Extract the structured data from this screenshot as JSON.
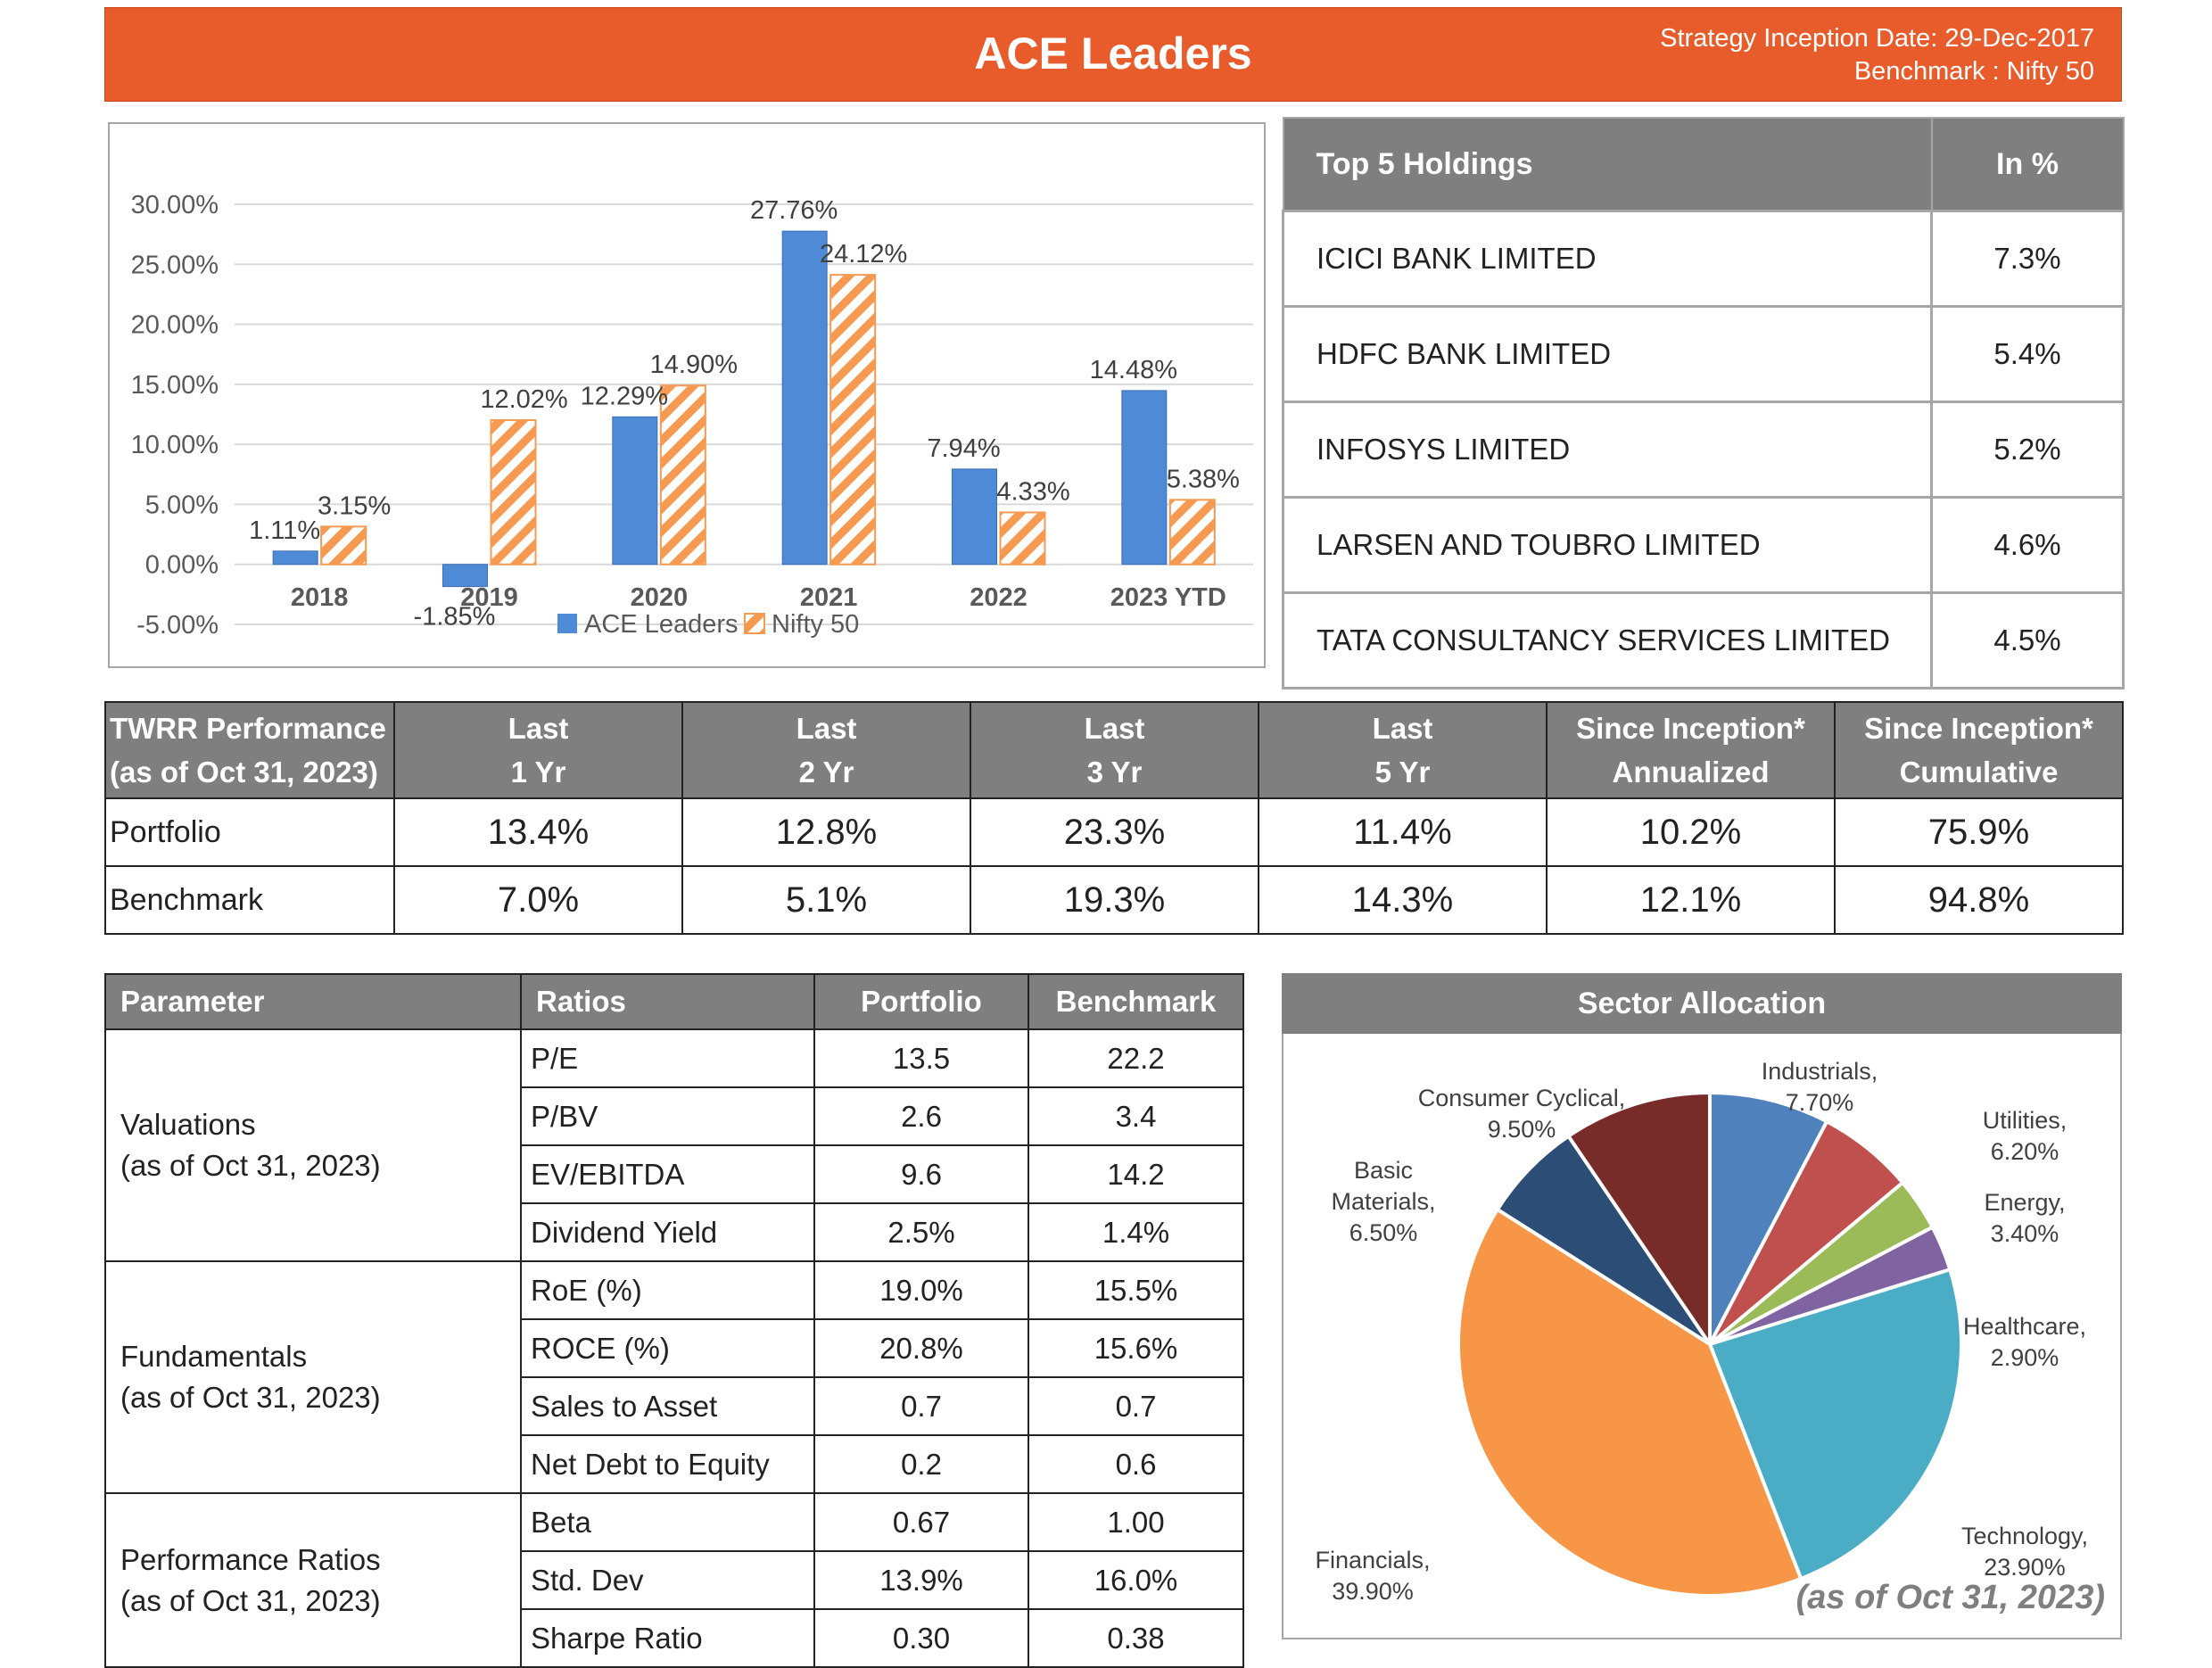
{
  "header": {
    "title": "ACE Leaders",
    "inception": "Strategy Inception Date: 29-Dec-2017",
    "benchmark": "Benchmark : Nifty 50"
  },
  "chart_data": [
    {
      "type": "bar",
      "categories": [
        "2018",
        "2019",
        "2020",
        "2021",
        "2022",
        "2023 YTD"
      ],
      "series": [
        {
          "name": "ACE Leaders",
          "values": [
            1.11,
            -1.85,
            12.29,
            27.76,
            7.94,
            14.48
          ],
          "labels": [
            "1.11%",
            "-1.85%",
            "12.29%",
            "27.76%",
            "7.94%",
            "14.48%"
          ],
          "color": "#4f8ad6"
        },
        {
          "name": "Nifty 50",
          "values": [
            3.15,
            12.02,
            14.9,
            24.12,
            4.33,
            5.38
          ],
          "labels": [
            "3.15%",
            "12.02%",
            "14.90%",
            "24.12%",
            "4.33%",
            "5.38%"
          ],
          "color": "#f59a50",
          "pattern": "diagonal-hatch"
        }
      ],
      "yticks": [
        "30.00%",
        "25.00%",
        "20.00%",
        "15.00%",
        "10.00%",
        "5.00%",
        "0.00%",
        "-5.00%"
      ],
      "ytick_values": [
        30,
        25,
        20,
        15,
        10,
        5,
        0,
        -5
      ],
      "ylim": [
        -5,
        30
      ],
      "grid": true,
      "legend": "bottom"
    },
    {
      "type": "pie",
      "title": "Sector Allocation",
      "slices": [
        {
          "label": "Industrials,",
          "value_text": "7.70%",
          "value": 7.7,
          "color": "#4f81bd"
        },
        {
          "label": "Utilities,",
          "value_text": "6.20%",
          "value": 6.2,
          "color": "#c0504d"
        },
        {
          "label": "Energy,",
          "value_text": "3.40%",
          "value": 3.4,
          "color": "#9bbb59"
        },
        {
          "label": "Healthcare,",
          "value_text": "2.90%",
          "value": 2.9,
          "color": "#8064a2"
        },
        {
          "label": "Technology,",
          "value_text": "23.90%",
          "value": 23.9,
          "color": "#4bacc6"
        },
        {
          "label": "Financials,",
          "value_text": "39.90%",
          "value": 39.9,
          "color": "#f79646"
        },
        {
          "label": "Basic Materials,",
          "value_text": "6.50%",
          "value": 6.5,
          "color": "#2c4d75"
        },
        {
          "label": "Consumer Cyclical,",
          "value_text": "9.50%",
          "value": 9.5,
          "color": "#772c2a"
        }
      ],
      "note": "(as of Oct 31, 2023)"
    }
  ],
  "holdings": {
    "headers": [
      "Top 5 Holdings",
      "In %"
    ],
    "rows": [
      [
        "ICICI BANK LIMITED",
        "7.3%"
      ],
      [
        "HDFC BANK LIMITED",
        "5.4%"
      ],
      [
        "INFOSYS LIMITED",
        "5.2%"
      ],
      [
        "LARSEN AND TOUBRO LIMITED",
        "4.6%"
      ],
      [
        "TATA CONSULTANCY SERVICES LIMITED",
        "4.5%"
      ]
    ]
  },
  "twrr": {
    "header_line1": "TWRR Performance",
    "header_line2": "(as of Oct 31, 2023)",
    "columns": [
      [
        "Last",
        "1 Yr"
      ],
      [
        "Last",
        "2 Yr"
      ],
      [
        "Last",
        "3 Yr"
      ],
      [
        "Last",
        "5 Yr"
      ],
      [
        "Since Inception*",
        "Annualized"
      ],
      [
        "Since Inception*",
        "Cumulative"
      ]
    ],
    "rows": [
      {
        "label": "Portfolio",
        "values": [
          "13.4%",
          "12.8%",
          "23.3%",
          "11.4%",
          "10.2%",
          "75.9%"
        ]
      },
      {
        "label": "Benchmark",
        "values": [
          "7.0%",
          "5.1%",
          "19.3%",
          "14.3%",
          "12.1%",
          "94.8%"
        ]
      }
    ]
  },
  "params": {
    "headers": [
      "Parameter",
      "Ratios",
      "Portfolio",
      "Benchmark"
    ],
    "groups": [
      {
        "name": "Valuations",
        "asof": "(as of Oct 31, 2023)",
        "rows": [
          [
            "P/E",
            "13.5",
            "22.2"
          ],
          [
            "P/BV",
            "2.6",
            "3.4"
          ],
          [
            "EV/EBITDA",
            "9.6",
            "14.2"
          ],
          [
            "Dividend Yield",
            "2.5%",
            "1.4%"
          ]
        ]
      },
      {
        "name": "Fundamentals",
        "asof": "(as of Oct 31, 2023)",
        "rows": [
          [
            "RoE (%)",
            "19.0%",
            "15.5%"
          ],
          [
            "ROCE (%)",
            "20.8%",
            "15.6%"
          ],
          [
            "Sales to Asset",
            "0.7",
            "0.7"
          ],
          [
            "Net Debt to Equity",
            "0.2",
            "0.6"
          ]
        ]
      },
      {
        "name": "Performance Ratios",
        "asof": "(as of Oct 31, 2023)",
        "rows": [
          [
            "Beta",
            "0.67",
            "1.00"
          ],
          [
            "Std. Dev",
            "13.9%",
            "16.0%"
          ],
          [
            "Sharpe Ratio",
            "0.30",
            "0.38"
          ]
        ]
      }
    ]
  }
}
